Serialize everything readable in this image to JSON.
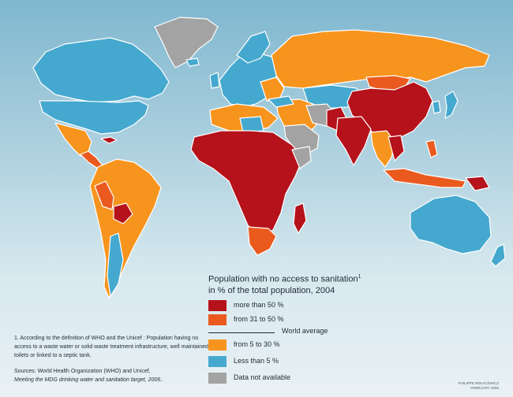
{
  "legend": {
    "title_line1": "Population with no access to sanitation",
    "title_sup": "1",
    "title_line2": "in % of the total population, 2004",
    "items": [
      {
        "label": "more than 50 %",
        "color": "#b5121b"
      },
      {
        "label": "from 31 to 50 %",
        "color": "#ea5a1f"
      },
      {
        "label": "from 5 to 30 %",
        "color": "#f7941d"
      },
      {
        "label": "Less than 5 %",
        "color": "#45a9cf"
      },
      {
        "label": "Data not available",
        "color": "#a3a3a3"
      }
    ],
    "world_average_label": "World average"
  },
  "footnote": {
    "marker": "1.",
    "text": "According to the definition of WHO and the Unicef : Population having no access to a waste water or solid waste treatment infrastructure, well maintained toilets or linked to a septic tank."
  },
  "sources": {
    "line1": "Sources: World Health Organization (WHO) and Unicef,",
    "line2": "Meeting the MDG drinking water and sanitation target, 2006.."
  },
  "credit": {
    "line1": "PHILIPPE REKACEWICZ",
    "line2": "FEBRUARY 2006"
  },
  "colors": {
    "ocean_top": "#7fb7cf",
    "ocean_bottom": "#e9f1f4",
    "border": "#ffffff"
  }
}
